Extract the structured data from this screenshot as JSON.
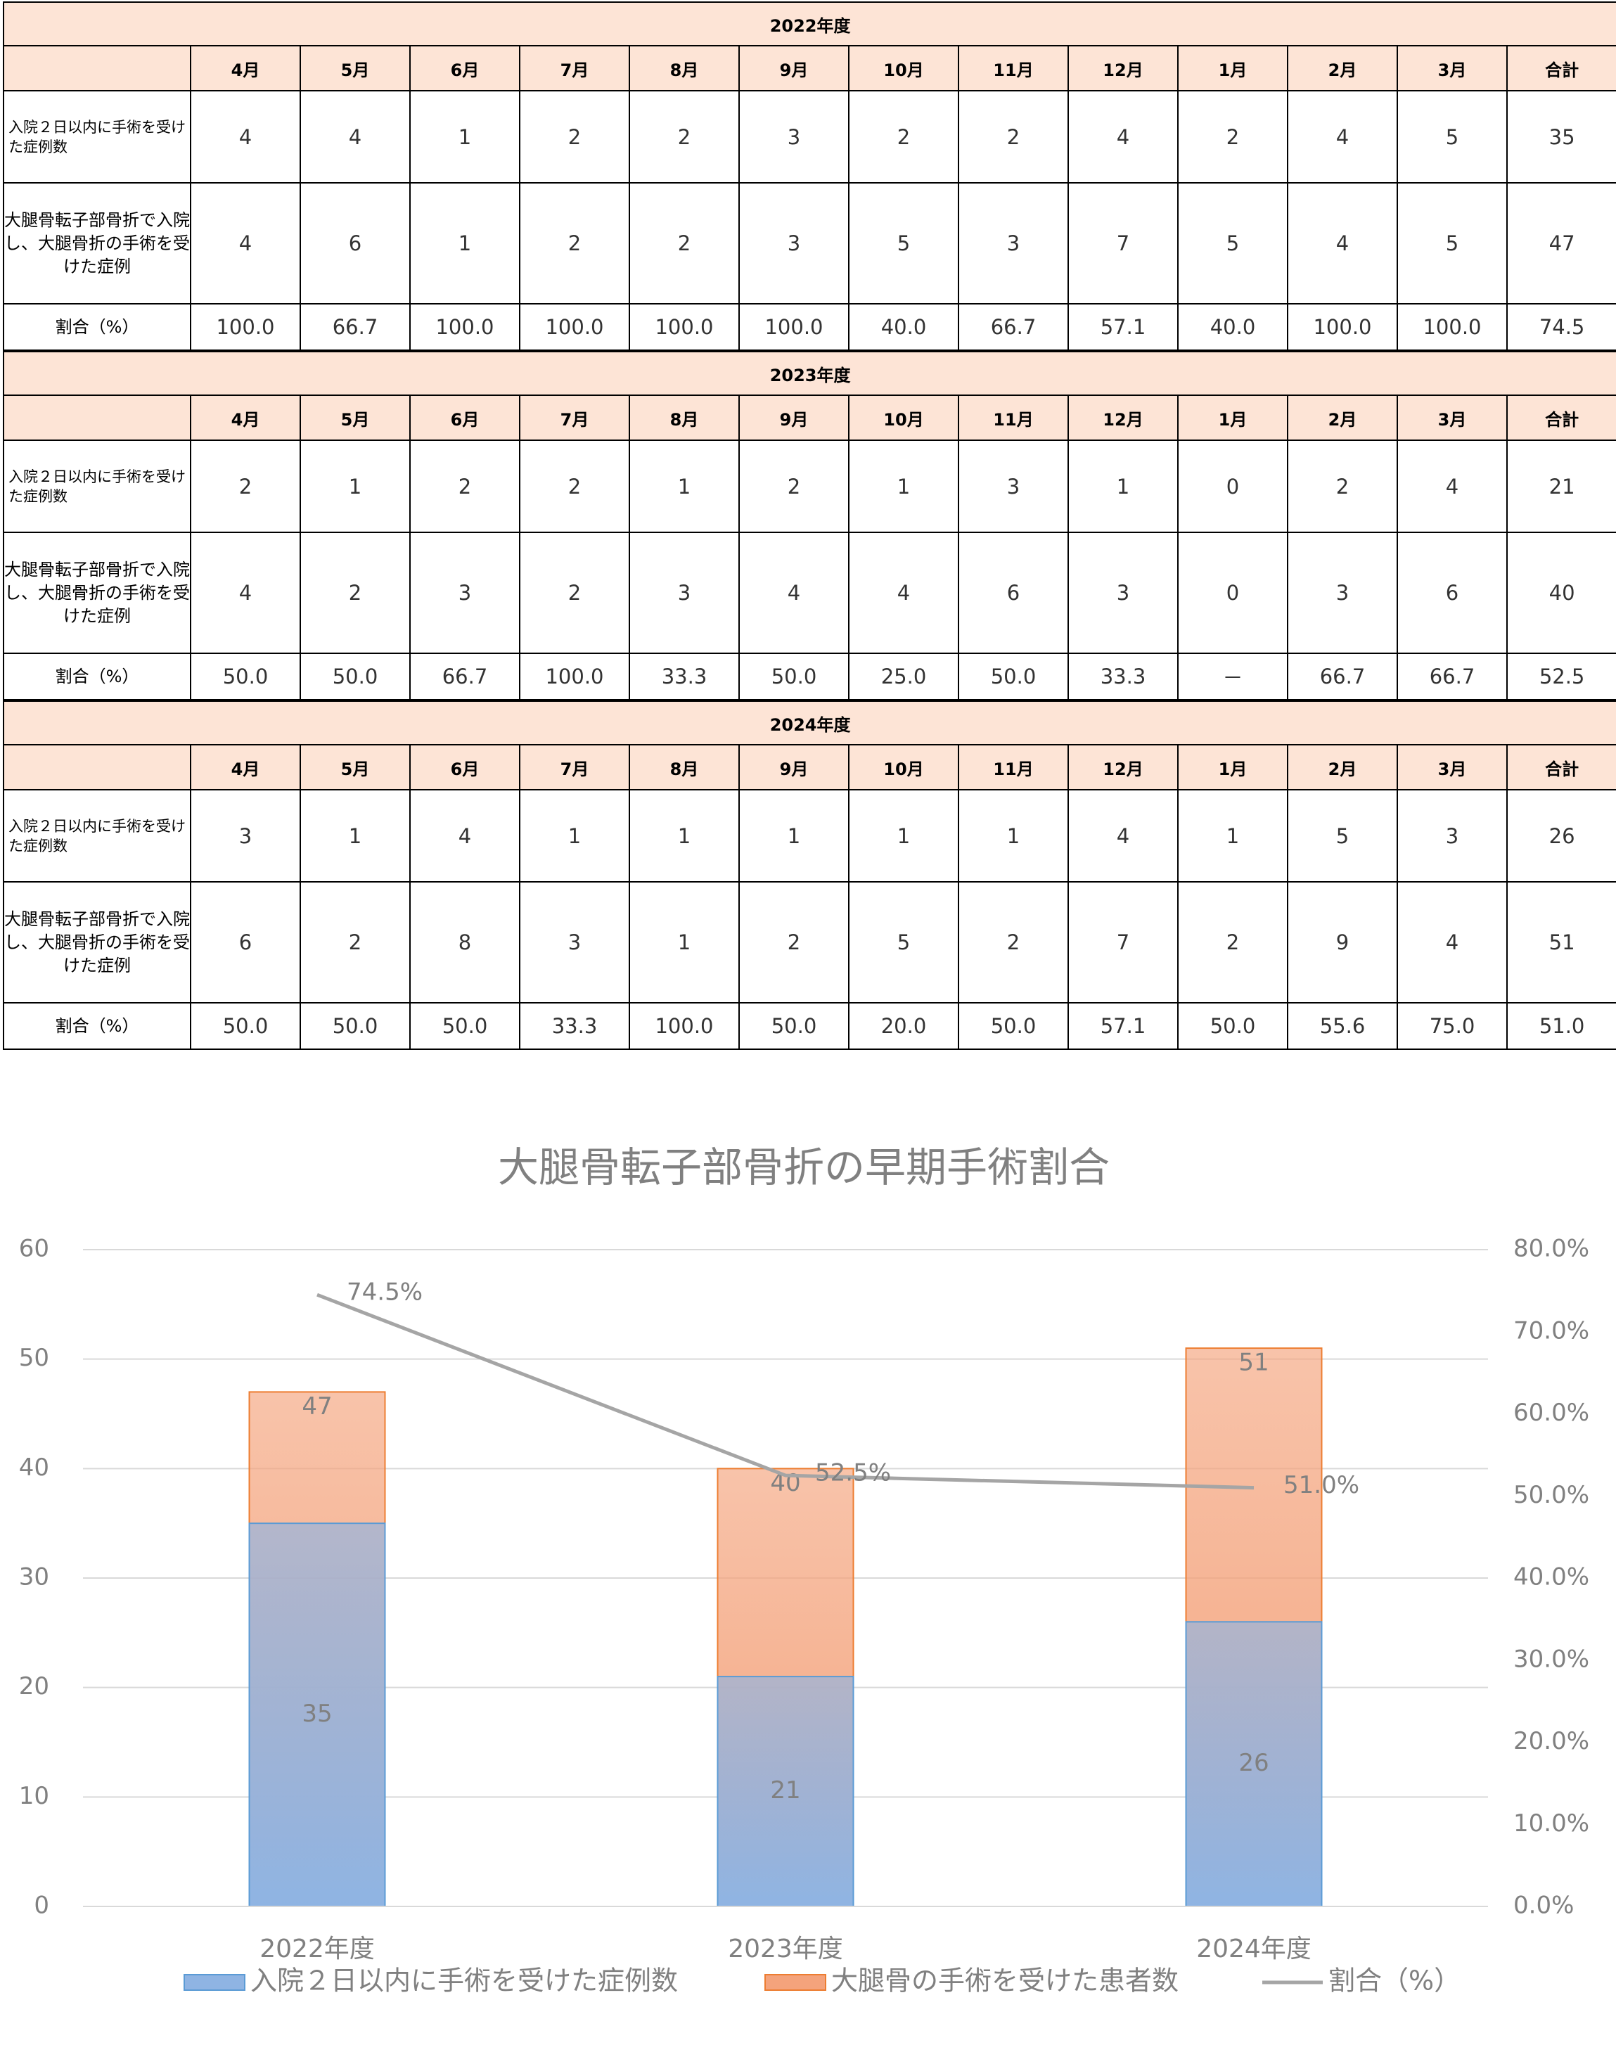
{
  "tables": [
    {
      "year": "2022年度",
      "headers": [
        "4月",
        "5月",
        "6月",
        "7月",
        "8月",
        "9月",
        "10月",
        "11月",
        "12月",
        "1月",
        "2月",
        "3月",
        "合計"
      ],
      "rows": [
        {
          "label": "入院２日以内に手術を受けた症例数",
          "values": [
            4,
            4,
            1,
            2,
            2,
            3,
            2,
            2,
            4,
            2,
            4,
            5,
            35
          ]
        },
        {
          "label": "大腿骨転子部骨折で入院し、大腿骨折の手術を受けた症例",
          "values": [
            4,
            6,
            1,
            2,
            2,
            3,
            5,
            3,
            7,
            5,
            4,
            5,
            47
          ]
        },
        {
          "label": "割合（%）",
          "values": [
            "100.0",
            "66.7",
            "100.0",
            "100.0",
            "100.0",
            "100.0",
            "40.0",
            "66.7",
            "57.1",
            "40.0",
            "100.0",
            "100.0",
            "74.5"
          ]
        }
      ]
    },
    {
      "year": "2023年度",
      "headers": [
        "4月",
        "5月",
        "6月",
        "7月",
        "8月",
        "9月",
        "10月",
        "11月",
        "12月",
        "1月",
        "2月",
        "3月",
        "合計"
      ],
      "rows": [
        {
          "label": "入院２日以内に手術を受けた症例数",
          "values": [
            2,
            1,
            2,
            2,
            1,
            2,
            1,
            3,
            1,
            0,
            2,
            4,
            21
          ]
        },
        {
          "label": "大腿骨転子部骨折で入院し、大腿骨折の手術を受けた症例",
          "values": [
            4,
            2,
            3,
            2,
            3,
            4,
            4,
            6,
            3,
            0,
            3,
            6,
            40
          ]
        },
        {
          "label": "割合（%）",
          "values": [
            "50.0",
            "50.0",
            "66.7",
            "100.0",
            "33.3",
            "50.0",
            "25.0",
            "50.0",
            "33.3",
            "－",
            "66.7",
            "66.7",
            "52.5"
          ]
        }
      ]
    },
    {
      "year": "2024年度",
      "headers": [
        "4月",
        "5月",
        "6月",
        "7月",
        "8月",
        "9月",
        "10月",
        "11月",
        "12月",
        "1月",
        "2月",
        "3月",
        "合計"
      ],
      "rows": [
        {
          "label": "入院２日以内に手術を受けた症例数",
          "values": [
            3,
            1,
            4,
            1,
            1,
            1,
            1,
            1,
            4,
            1,
            5,
            3,
            26
          ]
        },
        {
          "label": "大腿骨転子部骨折で入院し、大腿骨折の手術を受けた症例",
          "values": [
            6,
            2,
            8,
            3,
            1,
            2,
            5,
            2,
            7,
            2,
            9,
            4,
            51
          ]
        },
        {
          "label": "割合（%）",
          "values": [
            "50.0",
            "50.0",
            "50.0",
            "33.3",
            "100.0",
            "50.0",
            "20.0",
            "50.0",
            "57.1",
            "50.0",
            "55.6",
            "75.0",
            "51.0"
          ]
        }
      ]
    }
  ],
  "chart_data": {
    "type": "bar",
    "title": "大腿骨転子部骨折の早期手術割合",
    "categories": [
      "2022年度",
      "2023年度",
      "2024年度"
    ],
    "series": [
      {
        "name": "大腿骨の手術を受けた患者数",
        "color": "#f4a37c",
        "values": [
          47,
          40,
          51
        ]
      },
      {
        "name": "入院２日以内に手術を受けた症例数",
        "color": "#8fb4e3",
        "values": [
          35,
          21,
          26
        ]
      },
      {
        "name": "割合（%）",
        "type": "line",
        "axis": "y2",
        "color": "#a5a5a5",
        "values": [
          74.5,
          52.5,
          51.0
        ],
        "value_labels": [
          "74.5%",
          "52.5%",
          "51.0%"
        ]
      }
    ],
    "ylim": [
      0,
      60
    ],
    "yticks": [
      0,
      10,
      20,
      30,
      40,
      50,
      60
    ],
    "y2lim": [
      0,
      80
    ],
    "y2ticks": [
      {
        "value": 0,
        "label": "0.0%"
      },
      {
        "value": 10,
        "label": "10.0%"
      },
      {
        "value": 20,
        "label": "20.0%"
      },
      {
        "value": 30,
        "label": "30.0%"
      },
      {
        "value": 40,
        "label": "40.0%"
      },
      {
        "value": 50,
        "label": "50.0%"
      },
      {
        "value": 60,
        "label": "60.0%"
      },
      {
        "value": 70,
        "label": "70.0%"
      },
      {
        "value": 80,
        "label": "80.0%"
      }
    ],
    "grid": true,
    "legend": "bottom"
  }
}
